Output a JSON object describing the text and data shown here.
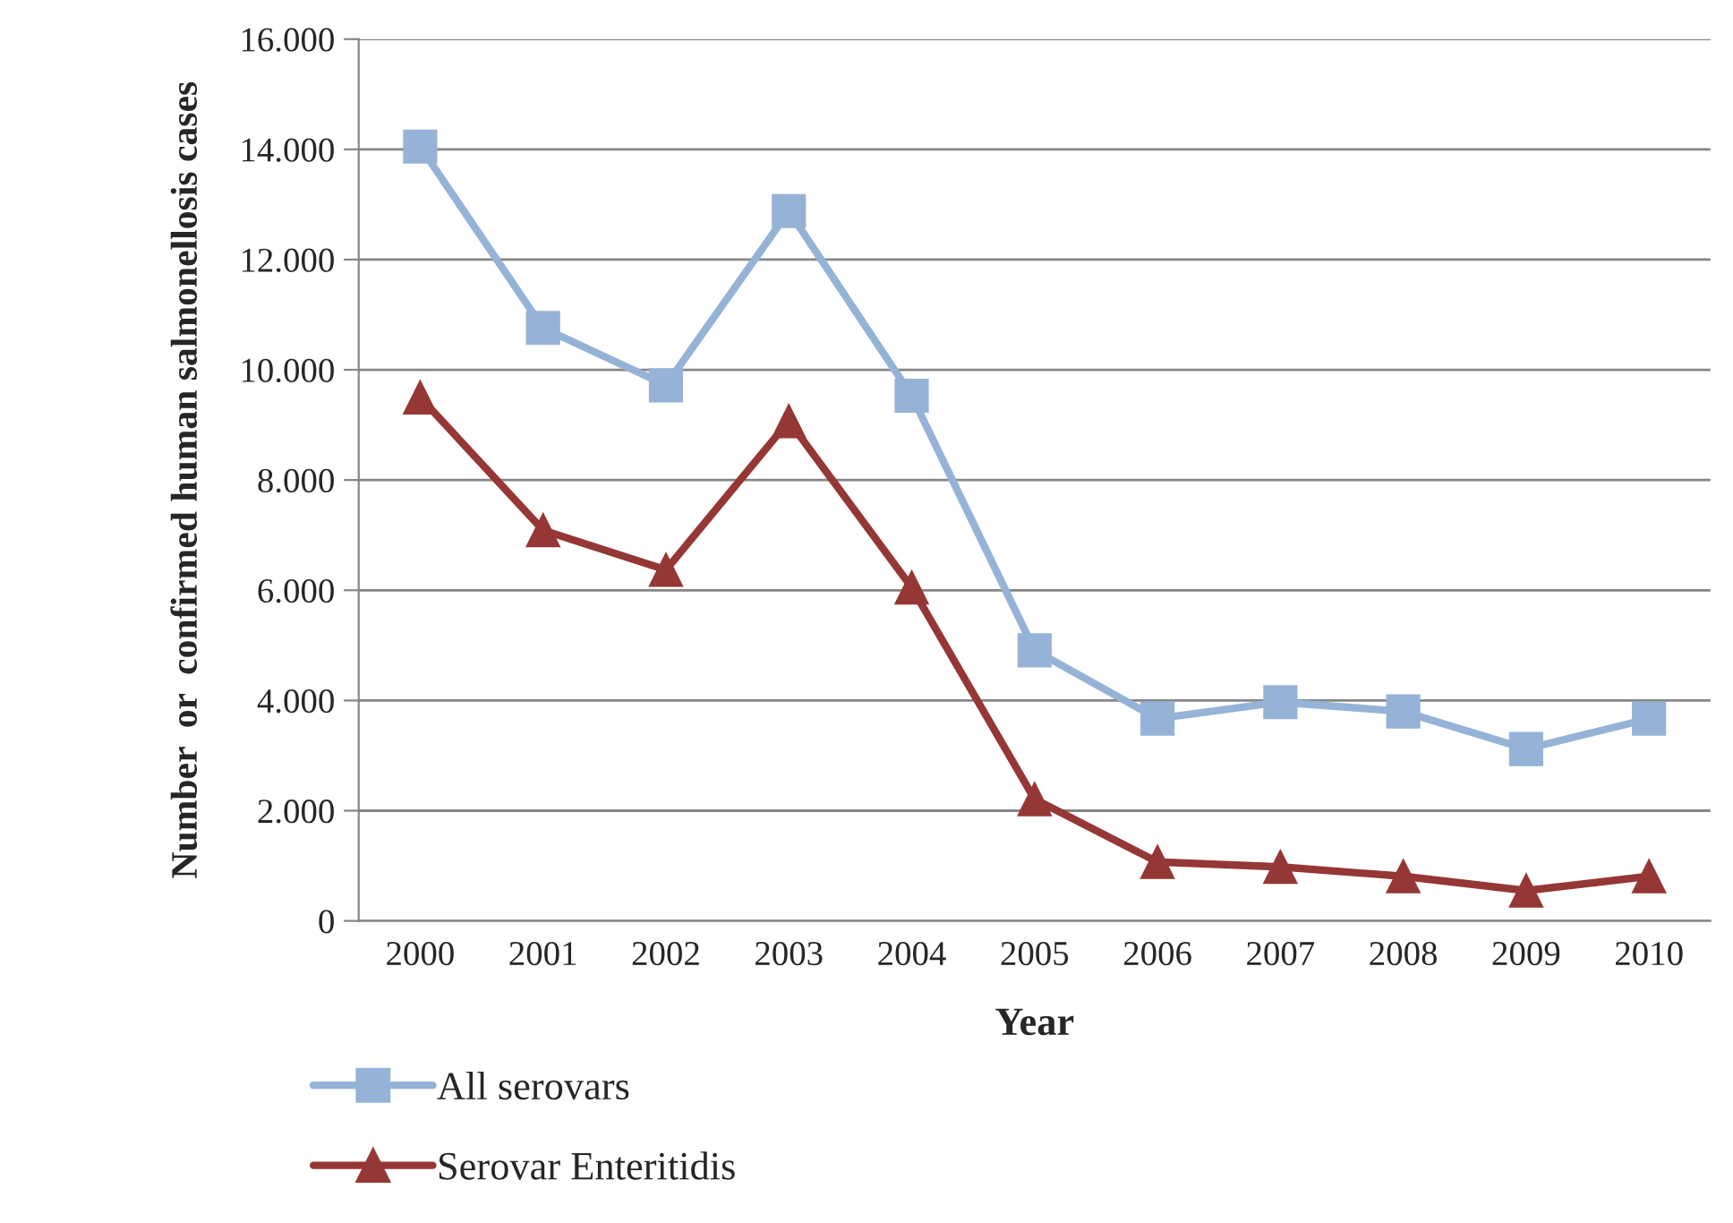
{
  "chart_data": {
    "type": "line",
    "xlabel": "Year",
    "ylabel": "Number  or  confirmed human salmonellosis cases",
    "categories": [
      "2000",
      "2001",
      "2002",
      "2003",
      "2004",
      "2005",
      "2006",
      "2007",
      "2008",
      "2009",
      "2010"
    ],
    "series": [
      {
        "name": "All serovars",
        "color": "#95b3d7",
        "marker": "square",
        "values": [
          14050,
          10760,
          9720,
          12880,
          9530,
          4910,
          3670,
          3970,
          3800,
          3120,
          3670
        ]
      },
      {
        "name": "Serovar Enteritidis",
        "color": "#953735",
        "marker": "triangle",
        "values": [
          9500,
          7090,
          6370,
          9070,
          6050,
          2210,
          1070,
          980,
          810,
          550,
          810
        ]
      }
    ],
    "ylim": [
      0,
      16000
    ],
    "yticks": [
      {
        "value": 0,
        "label": "0"
      },
      {
        "value": 2000,
        "label": "2.000"
      },
      {
        "value": 4000,
        "label": "4.000"
      },
      {
        "value": 6000,
        "label": "6.000"
      },
      {
        "value": 8000,
        "label": "8.000"
      },
      {
        "value": 10000,
        "label": "10.000"
      },
      {
        "value": 12000,
        "label": "12.000"
      },
      {
        "value": 14000,
        "label": "14.000"
      },
      {
        "value": 16000,
        "label": "16.000"
      }
    ],
    "grid": "y",
    "legend": "bottom",
    "line_style": "solid"
  }
}
